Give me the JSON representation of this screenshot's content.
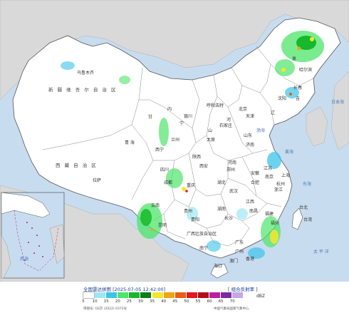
{
  "legend": {
    "title": "全国雷达拼图 [2025-07-05 12:42:00]",
    "product": "[ 组合反射率 ]",
    "unit": "dBZ",
    "colors": [
      "#ffffff",
      "#9ee7f2",
      "#3cc3ea",
      "#4ee46a",
      "#17b82c",
      "#0b7e1a",
      "#f3e72c",
      "#f0a416",
      "#e85e12",
      "#e8151a",
      "#b01015",
      "#ba1ea6",
      "#7a2d9e",
      "#c6a6e6"
    ],
    "ticks": [
      "5",
      "10",
      "15",
      "20",
      "25",
      "30",
      "35",
      "40",
      "45",
      "50",
      "55",
      "60",
      "65",
      "70"
    ],
    "approval": "审图号: GS京 (2022) 0372号",
    "credit": "中国气象局国家气象中心"
  },
  "map": {
    "provinces": {
      "xinjiang": "新 疆 维 吾 尔 自 治 区",
      "xizang": "西 藏 自 治 区",
      "qinghai": "青   海",
      "gansu": "甘",
      "nei_menggu": "内",
      "heilongjiang": "黑",
      "jilin": "吉",
      "liaoning": "辽",
      "hebei": "河",
      "shanxi": "山",
      "shandong": "山东",
      "henan": "河南",
      "hubei": "湖北",
      "hunan": "湖南",
      "sichuan": "四川",
      "guizhou": "贵州",
      "yunnan": "云南",
      "guangxi": "广西壮族自治区",
      "guangdong": "广东",
      "fujian": "福建",
      "jiangxi": "江西",
      "zhejiang": "浙江",
      "anhui": "安徽",
      "jiangsu": "江苏",
      "shaanxi": "陕西",
      "ningxia": "宁",
      "chongqing": "重庆",
      "taiwan": "台湾"
    },
    "cities": {
      "urumqi": "乌鲁木齐",
      "lhasa": "拉萨",
      "xining": "西宁",
      "lanzhou": "兰州",
      "yinchuan": "银川",
      "hohhot": "呼和浩特",
      "beijing": "北京",
      "tianjin": "天津",
      "shijiazhuang": "石家庄",
      "taiyuan": "太原",
      "jinan": "济南",
      "zhengzhou": "郑州",
      "xian": "西安",
      "chengdu": "成都",
      "chongqing": "重庆",
      "wuhan": "武汉",
      "hefei": "合肥",
      "nanjing": "南京",
      "shanghai": "上海",
      "hangzhou": "杭州",
      "nanchang": "南昌",
      "changsha": "长沙",
      "guiyang": "贵阳",
      "kunming": "昆明",
      "nanning": "南宁",
      "guangzhou": "广州",
      "fuzhou": "福州",
      "taipei": "台北",
      "haikou": "海口",
      "harbin": "哈尔滨",
      "changchun": "长春",
      "shenyang": "沈阳",
      "hongkong": "香港",
      "macau": "澳门"
    },
    "seas": {
      "bohai": "渤海",
      "yellow_sea": "黄海",
      "east_china_sea": "东海",
      "south_china_sea": "南海",
      "pacific": "太 平 洋",
      "sea_of_japan": "日本海"
    }
  }
}
